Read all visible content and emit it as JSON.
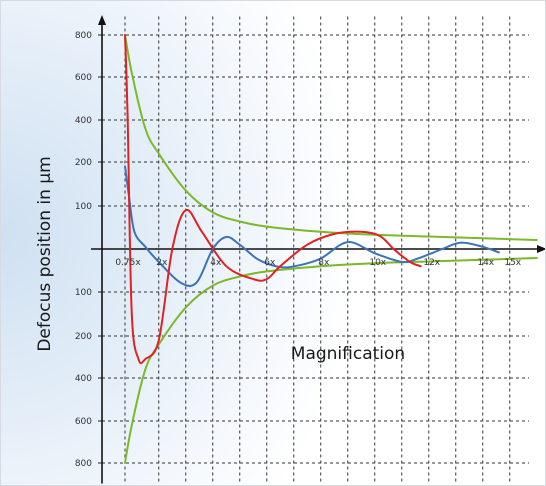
{
  "chart_data": {
    "type": "line",
    "xlabel": "Magnification",
    "ylabel": "Defocus position in µm",
    "x_tick_labels": [
      "0.75x",
      "2x",
      "4x",
      "6x",
      "8x",
      "10x",
      "12x",
      "14x",
      "15x"
    ],
    "x_tick_values": [
      0.75,
      2,
      4,
      6,
      8,
      10,
      12,
      14,
      15
    ],
    "xlim": [
      0,
      17
    ],
    "y_tick_labels": [
      "800",
      "600",
      "400",
      "200",
      "100",
      "100",
      "200",
      "400",
      "600",
      "800"
    ],
    "y_tick_values": [
      800,
      600,
      400,
      200,
      100,
      -100,
      -200,
      -400,
      -600,
      -800
    ],
    "ylim": [
      -850,
      850
    ],
    "grid": true,
    "series": [
      {
        "color": "#7ab928",
        "x": [
          0.75,
          1.0,
          1.5,
          2.0,
          3.0,
          4.0,
          5.0,
          6.0,
          8.0,
          10.0,
          12.0,
          14.0,
          16.0
        ],
        "y": [
          800,
          620,
          360,
          240,
          135,
          85,
          64,
          52,
          40,
          33,
          29,
          25,
          21
        ]
      },
      {
        "color": "#7ab928",
        "x": [
          0.75,
          1.0,
          1.5,
          2.0,
          3.0,
          4.0,
          5.0,
          6.0,
          8.0,
          10.0,
          12.0,
          14.0,
          16.0
        ],
        "y": [
          -800,
          -620,
          -360,
          -240,
          -135,
          -85,
          -64,
          -52,
          -40,
          -33,
          -29,
          -25,
          -21
        ]
      },
      {
        "color": "#3b73b8",
        "x": [
          0.75,
          0.9,
          1.1,
          1.5,
          2.0,
          2.8,
          3.4,
          4.0,
          4.5,
          5.0,
          5.7,
          6.5,
          7.2,
          8.0,
          9.0,
          10.0,
          11.0,
          11.6,
          12.5,
          13.2,
          14.0,
          14.6
        ],
        "y": [
          190,
          120,
          40,
          5,
          -30,
          -78,
          -78,
          0,
          28,
          10,
          -25,
          -42,
          -38,
          -22,
          16,
          -10,
          -30,
          -22,
          0,
          15,
          5,
          -8
        ]
      },
      {
        "color": "#e02222",
        "x": [
          0.75,
          0.85,
          1.0,
          1.25,
          1.5,
          2.0,
          2.5,
          3.0,
          3.6,
          4.5,
          5.5,
          6.0,
          6.5,
          7.5,
          8.5,
          9.5,
          10.2,
          10.7,
          11.3,
          11.7
        ],
        "y": [
          800,
          400,
          -150,
          -310,
          -310,
          -220,
          0,
          90,
          40,
          -40,
          -70,
          -70,
          -40,
          10,
          35,
          40,
          30,
          0,
          -30,
          -40
        ]
      }
    ]
  }
}
